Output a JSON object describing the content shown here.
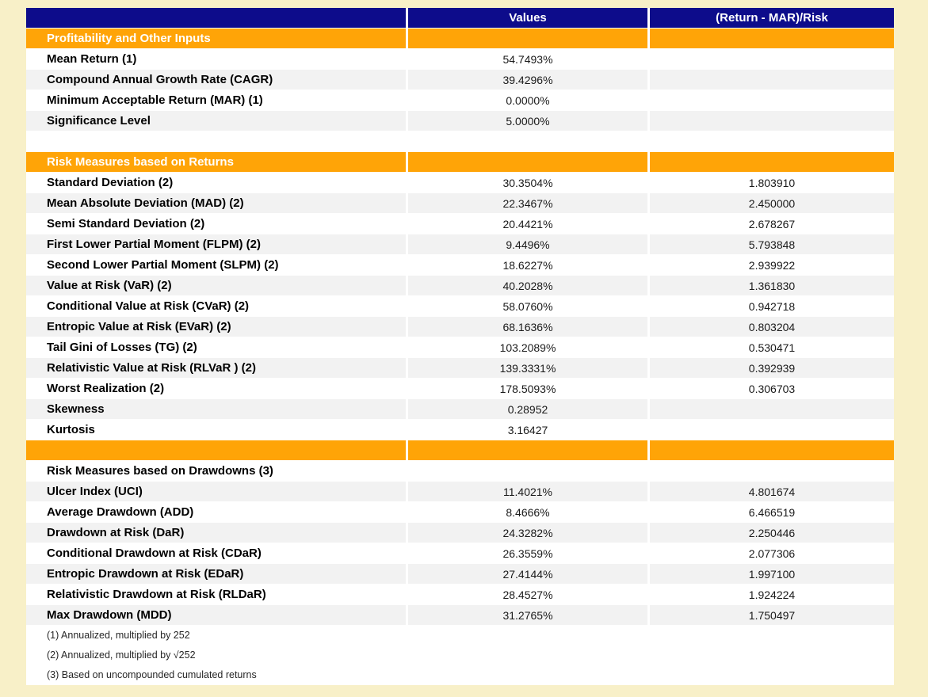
{
  "page": {
    "background_color": "#F8F0C8",
    "header_color": "#0D0C8B",
    "section_color": "#FFA407",
    "shade_color": "#F2F2F2"
  },
  "table": {
    "columns": {
      "label": "",
      "values": "Values",
      "ratio": "(Return - MAR)/Risk"
    },
    "rows": [
      {
        "type": "section",
        "label": "Profitability and Other Inputs"
      },
      {
        "type": "data",
        "shade": false,
        "label": "Mean Return (1)",
        "value": "54.7493%",
        "ratio": ""
      },
      {
        "type": "data",
        "shade": true,
        "label": "Compound Annual Growth Rate (CAGR)",
        "value": "39.4296%",
        "ratio": ""
      },
      {
        "type": "data",
        "shade": false,
        "label": "Minimum Acceptable Return (MAR) (1)",
        "value": "0.0000%",
        "ratio": ""
      },
      {
        "type": "data",
        "shade": true,
        "label": "Significance Level",
        "value": "5.0000%",
        "ratio": ""
      },
      {
        "type": "blank"
      },
      {
        "type": "section",
        "label": "Risk Measures based on Returns"
      },
      {
        "type": "data",
        "shade": false,
        "label": "Standard Deviation (2)",
        "value": "30.3504%",
        "ratio": "1.803910"
      },
      {
        "type": "data",
        "shade": true,
        "label": "Mean Absolute Deviation (MAD) (2)",
        "value": "22.3467%",
        "ratio": "2.450000"
      },
      {
        "type": "data",
        "shade": false,
        "label": "Semi Standard Deviation (2)",
        "value": "20.4421%",
        "ratio": "2.678267"
      },
      {
        "type": "data",
        "shade": true,
        "label": "First Lower Partial Moment (FLPM) (2)",
        "value": "9.4496%",
        "ratio": "5.793848"
      },
      {
        "type": "data",
        "shade": false,
        "label": "Second Lower Partial Moment (SLPM) (2)",
        "value": "18.6227%",
        "ratio": "2.939922"
      },
      {
        "type": "data",
        "shade": true,
        "label": "Value at Risk (VaR) (2)",
        "value": "40.2028%",
        "ratio": "1.361830"
      },
      {
        "type": "data",
        "shade": false,
        "label": "Conditional Value at Risk (CVaR) (2)",
        "value": "58.0760%",
        "ratio": "0.942718"
      },
      {
        "type": "data",
        "shade": true,
        "label": "Entropic Value at Risk (EVaR) (2)",
        "value": "68.1636%",
        "ratio": "0.803204"
      },
      {
        "type": "data",
        "shade": false,
        "label": "Tail Gini of Losses (TG) (2)",
        "value": "103.2089%",
        "ratio": "0.530471"
      },
      {
        "type": "data",
        "shade": true,
        "label": "Relativistic Value at Risk (RLVaR ) (2)",
        "value": "139.3331%",
        "ratio": "0.392939"
      },
      {
        "type": "data",
        "shade": false,
        "label": "Worst Realization (2)",
        "value": "178.5093%",
        "ratio": "0.306703"
      },
      {
        "type": "data",
        "shade": true,
        "label": "Skewness",
        "value": "0.28952",
        "ratio": ""
      },
      {
        "type": "data",
        "shade": false,
        "label": "Kurtosis",
        "value": "3.16427",
        "ratio": ""
      },
      {
        "type": "section",
        "label": ""
      },
      {
        "type": "subsection",
        "label": "Risk Measures based on Drawdowns (3)"
      },
      {
        "type": "data",
        "shade": true,
        "label": "Ulcer Index (UCI)",
        "value": "11.4021%",
        "ratio": "4.801674"
      },
      {
        "type": "data",
        "shade": false,
        "label": "Average Drawdown (ADD)",
        "value": "8.4666%",
        "ratio": "6.466519"
      },
      {
        "type": "data",
        "shade": true,
        "label": "Drawdown at Risk (DaR)",
        "value": "24.3282%",
        "ratio": "2.250446"
      },
      {
        "type": "data",
        "shade": false,
        "label": "Conditional Drawdown at Risk (CDaR)",
        "value": "26.3559%",
        "ratio": "2.077306"
      },
      {
        "type": "data",
        "shade": true,
        "label": "Entropic Drawdown at Risk (EDaR)",
        "value": "27.4144%",
        "ratio": "1.997100"
      },
      {
        "type": "data",
        "shade": false,
        "label": "Relativistic Drawdown at Risk (RLDaR)",
        "value": "28.4527%",
        "ratio": "1.924224"
      },
      {
        "type": "data",
        "shade": true,
        "label": "Max Drawdown (MDD)",
        "value": "31.2765%",
        "ratio": "1.750497"
      },
      {
        "type": "footnote",
        "label": "(1) Annualized, multiplied by 252"
      },
      {
        "type": "footnote",
        "label": "(2) Annualized, multiplied by √252"
      },
      {
        "type": "footnote",
        "label": "(3) Based on uncompounded cumulated returns"
      }
    ]
  }
}
